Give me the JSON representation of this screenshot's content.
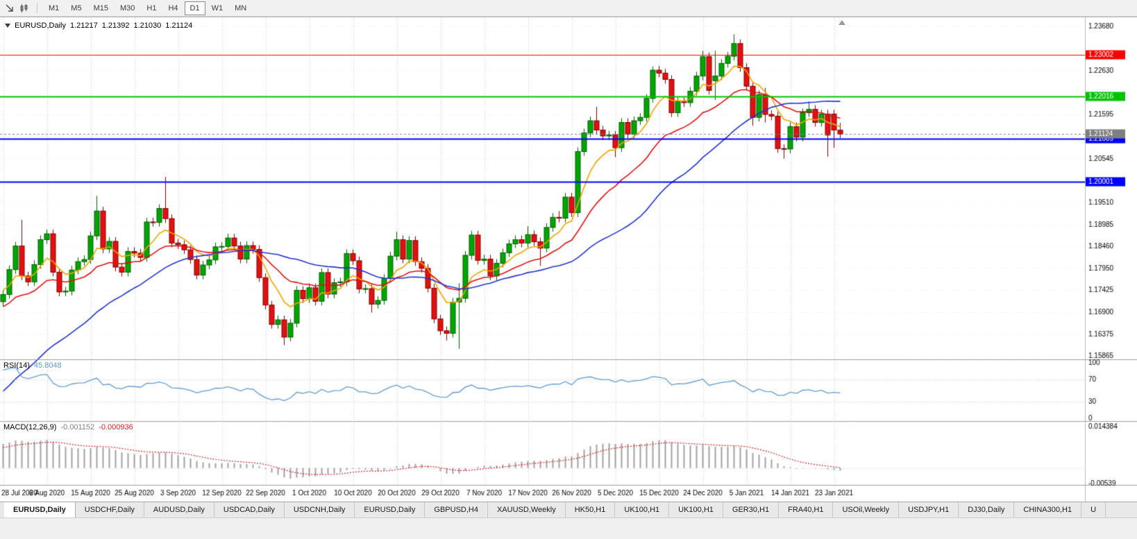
{
  "toolbar": {
    "icons": [
      {
        "name": "pointer-arrow-icon"
      },
      {
        "name": "candlestick-chart-icon"
      }
    ],
    "timeframes": [
      {
        "label": "M1",
        "active": false
      },
      {
        "label": "M5",
        "active": false
      },
      {
        "label": "M15",
        "active": false
      },
      {
        "label": "M30",
        "active": false
      },
      {
        "label": "H1",
        "active": false
      },
      {
        "label": "H4",
        "active": false
      },
      {
        "label": "D1",
        "active": true
      },
      {
        "label": "W1",
        "active": false
      },
      {
        "label": "MN",
        "active": false
      }
    ]
  },
  "chart_header": {
    "symbol": "EURUSD,Daily",
    "open": "1.21217",
    "high": "1.21392",
    "low": "1.21030",
    "close": "1.21124"
  },
  "rsi_header": {
    "label": "RSI(14)",
    "value": "45.8048"
  },
  "macd_header": {
    "label": "MACD(12,26,9)",
    "value": "-0.001152",
    "signal": "-0.000936"
  },
  "tabs": {
    "items": [
      {
        "label": "EURUSD,Daily",
        "active": true
      },
      {
        "label": "USDCHF,Daily",
        "active": false
      },
      {
        "label": "AUDUSD,Daily",
        "active": false
      },
      {
        "label": "USDCAD,Daily",
        "active": false
      },
      {
        "label": "USDCNH,Daily",
        "active": false
      },
      {
        "label": "EURUSD,Daily",
        "active": false
      },
      {
        "label": "GBPUSD,H4",
        "active": false
      },
      {
        "label": "XAUUSD,Weekly",
        "active": false
      },
      {
        "label": "HK50,H1",
        "active": false
      },
      {
        "label": "UK100,H1",
        "active": false
      },
      {
        "label": "UK100,H1",
        "active": false
      },
      {
        "label": "GER30,H1",
        "active": false
      },
      {
        "label": "FRA40,H1",
        "active": false
      },
      {
        "label": "USOil,Weekly",
        "active": false
      },
      {
        "label": "USDJPY,H1",
        "active": false
      },
      {
        "label": "DJ30,Daily",
        "active": false
      },
      {
        "label": "CHINA300,H1",
        "active": false
      },
      {
        "label": "U",
        "active": false
      }
    ]
  },
  "chart_data": {
    "type": "candlestick",
    "symbol": "EURUSD",
    "timeframe": "Daily",
    "title": "EURUSD,Daily 1.21217 1.21392 1.21030 1.21124",
    "x_labels": [
      "28 Jul 2020",
      "6 Aug 2020",
      "15 Aug 2020",
      "25 Aug 2020",
      "3 Sep 2020",
      "12 Sep 2020",
      "22 Sep 2020",
      "1 Oct 2020",
      "10 Oct 2020",
      "20 Oct 2020",
      "29 Oct 2020",
      "7 Nov 2020",
      "17 Nov 2020",
      "26 Nov 2020",
      "5 Dec 2020",
      "15 Dec 2020",
      "24 Dec 2020",
      "5 Jan 2021",
      "14 Jan 2021",
      "23 Jan 2021"
    ],
    "x_label_interval": 7,
    "price_axis": {
      "min": 1.15783,
      "max": 1.23892,
      "labels": [
        "1.23680",
        "1.22630",
        "1.21595",
        "1.20545",
        "1.19510",
        "1.18985",
        "1.18460",
        "1.17950",
        "1.17425",
        "1.16900",
        "1.16375",
        "1.15865"
      ]
    },
    "levels": [
      {
        "price": 1.23002,
        "label": "1.23002",
        "color": "#fe0000",
        "width": 1
      },
      {
        "price": 1.22016,
        "label": "1.22016",
        "color": "#00c300",
        "width": 2
      },
      {
        "price": 1.21009,
        "label": "1.21009",
        "color": "#0000fe",
        "width": 2
      },
      {
        "price": 1.20001,
        "label": "1.20001",
        "color": "#0000fe",
        "width": 2
      }
    ],
    "current_price": {
      "price": 1.21124,
      "label": "1.21124",
      "color": "#7f7f7f"
    },
    "colors": {
      "up": "#00a500",
      "up_border": "#005e00",
      "down": "#e41010",
      "down_border": "#7d0000",
      "grid_v": "#cccccc",
      "grid_h": "#f0f0f0",
      "axis_text": "#000000",
      "separator": "#9e9e9e"
    },
    "moving_averages": [
      {
        "name": "fast",
        "method": "ema",
        "alpha": 0.24,
        "seed": 1.1745,
        "color": "#efa500"
      },
      {
        "name": "medium",
        "method": "ema",
        "alpha": 0.1,
        "seed": 1.17,
        "color": "#e01010"
      },
      {
        "name": "slow",
        "method": "sma",
        "period": 34,
        "color": "#2233cc"
      }
    ],
    "sma_warmup_closes": [
      1.131,
      1.1325,
      1.1318,
      1.134,
      1.1355,
      1.1348,
      1.137,
      1.1385,
      1.1378,
      1.14,
      1.1415,
      1.1408,
      1.143,
      1.1448,
      1.144,
      1.1462,
      1.148,
      1.1472,
      1.1495,
      1.1515,
      1.1508,
      1.153,
      1.155,
      1.1542,
      1.1565,
      1.1585,
      1.1578,
      1.16,
      1.1625,
      1.165,
      1.1675,
      1.17,
      1.1725,
      1.1745
    ],
    "rsi": {
      "period": 14,
      "value": 45.8048,
      "color": "#5b9bd5",
      "scale_labels": [
        100,
        70,
        30,
        0
      ],
      "guides": [
        70,
        30
      ]
    },
    "macd": {
      "fast": 12,
      "slow": 26,
      "signal": 9,
      "value": -0.001152,
      "signal_value": -0.000936,
      "axis_max": 0.014384,
      "axis_max_label": "0.014384",
      "axis_min": -0.00539,
      "axis_min_label": "-0.00539",
      "histogram_color": "#a0a0a0",
      "signal_color": "#e02020"
    },
    "candles": [
      [
        1.1715,
        1.1742,
        1.1705,
        1.1732
      ],
      [
        1.1732,
        1.1801,
        1.1722,
        1.1791
      ],
      [
        1.1791,
        1.1857,
        1.1781,
        1.1847
      ],
      [
        1.1847,
        1.1909,
        1.1766,
        1.1776
      ],
      [
        1.1776,
        1.1786,
        1.1752,
        1.1762
      ],
      [
        1.1762,
        1.1813,
        1.1752,
        1.1803
      ],
      [
        1.1803,
        1.1872,
        1.1793,
        1.1862
      ],
      [
        1.1862,
        1.1886,
        1.1852,
        1.1876
      ],
      [
        1.1876,
        1.1886,
        1.1775,
        1.1785
      ],
      [
        1.1785,
        1.1795,
        1.1728,
        1.1738
      ],
      [
        1.1738,
        1.175,
        1.1728,
        1.174
      ],
      [
        1.174,
        1.18,
        1.173,
        1.179
      ],
      [
        1.179,
        1.182,
        1.178,
        1.181
      ],
      [
        1.181,
        1.1825,
        1.18,
        1.1815
      ],
      [
        1.1815,
        1.1881,
        1.1805,
        1.1871
      ],
      [
        1.1871,
        1.1966,
        1.1861,
        1.193
      ],
      [
        1.193,
        1.194,
        1.183,
        1.184
      ],
      [
        1.184,
        1.1868,
        1.183,
        1.1858
      ],
      [
        1.1858,
        1.1868,
        1.1787,
        1.1797
      ],
      [
        1.1797,
        1.1807,
        1.1775,
        1.1785
      ],
      [
        1.1785,
        1.1844,
        1.1775,
        1.1834
      ],
      [
        1.1834,
        1.1844,
        1.182,
        1.183
      ],
      [
        1.183,
        1.184,
        1.181,
        1.182
      ],
      [
        1.182,
        1.1914,
        1.181,
        1.1904
      ],
      [
        1.1904,
        1.1914,
        1.1893,
        1.1903
      ],
      [
        1.1903,
        1.1946,
        1.1893,
        1.1936
      ],
      [
        1.1936,
        1.2011,
        1.1902,
        1.1912
      ],
      [
        1.1912,
        1.1922,
        1.1844,
        1.1854
      ],
      [
        1.1854,
        1.1864,
        1.184,
        1.185
      ],
      [
        1.185,
        1.186,
        1.1828,
        1.1838
      ],
      [
        1.1838,
        1.1848,
        1.1805,
        1.1815
      ],
      [
        1.1815,
        1.1825,
        1.1768,
        1.1778
      ],
      [
        1.1778,
        1.1812,
        1.1768,
        1.1802
      ],
      [
        1.1802,
        1.1824,
        1.1792,
        1.1814
      ],
      [
        1.1814,
        1.1855,
        1.1804,
        1.1845
      ],
      [
        1.1845,
        1.1856,
        1.1835,
        1.1846
      ],
      [
        1.1846,
        1.1876,
        1.1836,
        1.1866
      ],
      [
        1.1866,
        1.1876,
        1.1837,
        1.1847
      ],
      [
        1.1847,
        1.1857,
        1.1806,
        1.1816
      ],
      [
        1.1816,
        1.1858,
        1.1806,
        1.1848
      ],
      [
        1.1848,
        1.1858,
        1.1829,
        1.1839
      ],
      [
        1.1839,
        1.1849,
        1.1762,
        1.1772
      ],
      [
        1.1772,
        1.1782,
        1.1697,
        1.1707
      ],
      [
        1.1707,
        1.1717,
        1.1651,
        1.1661
      ],
      [
        1.1661,
        1.1682,
        1.1651,
        1.1672
      ],
      [
        1.1672,
        1.1682,
        1.1612,
        1.1631
      ],
      [
        1.1631,
        1.1674,
        1.1621,
        1.1664
      ],
      [
        1.1664,
        1.1752,
        1.1654,
        1.1742
      ],
      [
        1.1742,
        1.1752,
        1.1712,
        1.1722
      ],
      [
        1.1722,
        1.1758,
        1.1712,
        1.1748
      ],
      [
        1.1748,
        1.1758,
        1.1706,
        1.1716
      ],
      [
        1.1716,
        1.1794,
        1.1706,
        1.1784
      ],
      [
        1.1784,
        1.1794,
        1.1723,
        1.1733
      ],
      [
        1.1733,
        1.177,
        1.1723,
        1.176
      ],
      [
        1.176,
        1.1772,
        1.175,
        1.1762
      ],
      [
        1.1762,
        1.1839,
        1.1752,
        1.1829
      ],
      [
        1.1829,
        1.1839,
        1.1802,
        1.1812
      ],
      [
        1.1812,
        1.1822,
        1.1735,
        1.1745
      ],
      [
        1.1745,
        1.1756,
        1.1735,
        1.1746
      ],
      [
        1.1746,
        1.1756,
        1.1689,
        1.1709
      ],
      [
        1.1709,
        1.1728,
        1.1699,
        1.1718
      ],
      [
        1.1718,
        1.178,
        1.1708,
        1.177
      ],
      [
        1.177,
        1.1833,
        1.176,
        1.1823
      ],
      [
        1.1823,
        1.1881,
        1.1813,
        1.1862
      ],
      [
        1.1862,
        1.1872,
        1.1806,
        1.1816
      ],
      [
        1.1816,
        1.187,
        1.1806,
        1.186
      ],
      [
        1.186,
        1.187,
        1.18,
        1.181
      ],
      [
        1.181,
        1.182,
        1.1784,
        1.1794
      ],
      [
        1.1794,
        1.1804,
        1.1737,
        1.1747
      ],
      [
        1.1747,
        1.1757,
        1.1664,
        1.1674
      ],
      [
        1.1674,
        1.1684,
        1.1636,
        1.1646
      ],
      [
        1.1646,
        1.1656,
        1.1623,
        1.164
      ],
      [
        1.164,
        1.1724,
        1.163,
        1.1714
      ],
      [
        1.1714,
        1.1759,
        1.1603,
        1.1723
      ],
      [
        1.1723,
        1.1835,
        1.1713,
        1.1825
      ],
      [
        1.1825,
        1.1883,
        1.1815,
        1.1873
      ],
      [
        1.1873,
        1.1883,
        1.1803,
        1.1813
      ],
      [
        1.1813,
        1.1826,
        1.1803,
        1.1816
      ],
      [
        1.1816,
        1.1826,
        1.1766,
        1.1776
      ],
      [
        1.1776,
        1.1816,
        1.1766,
        1.1806
      ],
      [
        1.1806,
        1.1841,
        1.1796,
        1.1831
      ],
      [
        1.1831,
        1.1862,
        1.1821,
        1.1852
      ],
      [
        1.1852,
        1.1872,
        1.1842,
        1.1862
      ],
      [
        1.1862,
        1.1872,
        1.1844,
        1.1854
      ],
      [
        1.1854,
        1.1894,
        1.1844,
        1.1874
      ],
      [
        1.1874,
        1.1884,
        1.1847,
        1.1857
      ],
      [
        1.1857,
        1.1867,
        1.18,
        1.1842
      ],
      [
        1.1842,
        1.1901,
        1.1832,
        1.1891
      ],
      [
        1.1891,
        1.1925,
        1.1881,
        1.1915
      ],
      [
        1.1915,
        1.193,
        1.1903,
        1.1913
      ],
      [
        1.1913,
        1.1973,
        1.1903,
        1.1963
      ],
      [
        1.1963,
        1.1973,
        1.1916,
        1.1926
      ],
      [
        1.1926,
        1.2081,
        1.1916,
        1.2071
      ],
      [
        1.2071,
        1.2125,
        1.2061,
        1.2115
      ],
      [
        1.2115,
        1.2154,
        1.2105,
        1.2144
      ],
      [
        1.2144,
        1.2177,
        1.2112,
        1.2122
      ],
      [
        1.2122,
        1.2132,
        1.2098,
        1.2108
      ],
      [
        1.2108,
        1.212,
        1.2098,
        1.211
      ],
      [
        1.211,
        1.212,
        1.2058,
        1.208
      ],
      [
        1.208,
        1.215,
        1.207,
        1.214
      ],
      [
        1.214,
        1.215,
        1.2102,
        1.2112
      ],
      [
        1.2112,
        1.2154,
        1.2102,
        1.2144
      ],
      [
        1.2144,
        1.2162,
        1.2134,
        1.2152
      ],
      [
        1.2152,
        1.2207,
        1.2142,
        1.2197
      ],
      [
        1.2197,
        1.2273,
        1.2187,
        1.2264
      ],
      [
        1.2264,
        1.2274,
        1.2247,
        1.2257
      ],
      [
        1.2257,
        1.2267,
        1.2232,
        1.2242
      ],
      [
        1.2242,
        1.2252,
        1.2153,
        1.2163
      ],
      [
        1.2163,
        1.2199,
        1.2153,
        1.2189
      ],
      [
        1.2189,
        1.2199,
        1.2177,
        1.2187
      ],
      [
        1.2187,
        1.2224,
        1.2177,
        1.2214
      ],
      [
        1.2214,
        1.226,
        1.2204,
        1.225
      ],
      [
        1.225,
        1.231,
        1.224,
        1.2296
      ],
      [
        1.2296,
        1.2306,
        1.2206,
        1.2216
      ],
      [
        1.2239,
        1.231,
        1.2193,
        1.225
      ],
      [
        1.225,
        1.229,
        1.224,
        1.228
      ],
      [
        1.228,
        1.2307,
        1.227,
        1.2297
      ],
      [
        1.2297,
        1.2349,
        1.2287,
        1.2327
      ],
      [
        1.2327,
        1.2337,
        1.226,
        1.227
      ],
      [
        1.227,
        1.228,
        1.2216,
        1.2226
      ],
      [
        1.2226,
        1.2236,
        1.2132,
        1.2152
      ],
      [
        1.2152,
        1.2216,
        1.2142,
        1.2206
      ],
      [
        1.2206,
        1.2222,
        1.214,
        1.2159
      ],
      [
        1.2159,
        1.2169,
        1.2145,
        1.2155
      ],
      [
        1.2155,
        1.2165,
        1.2068,
        1.2078
      ],
      [
        1.2078,
        1.2088,
        1.2054,
        1.2077
      ],
      [
        1.2077,
        1.214,
        1.2067,
        1.213
      ],
      [
        1.213,
        1.214,
        1.2095,
        1.2105
      ],
      [
        1.2105,
        1.2173,
        1.2095,
        1.2163
      ],
      [
        1.2163,
        1.219,
        1.2153,
        1.2171
      ],
      [
        1.2171,
        1.2181,
        1.213,
        1.214
      ],
      [
        1.214,
        1.217,
        1.213,
        1.216
      ],
      [
        1.216,
        1.217,
        1.2059,
        1.211
      ],
      [
        1.216,
        1.217,
        1.208,
        1.2122
      ],
      [
        1.21217,
        1.21392,
        1.2103,
        1.21124
      ]
    ]
  }
}
